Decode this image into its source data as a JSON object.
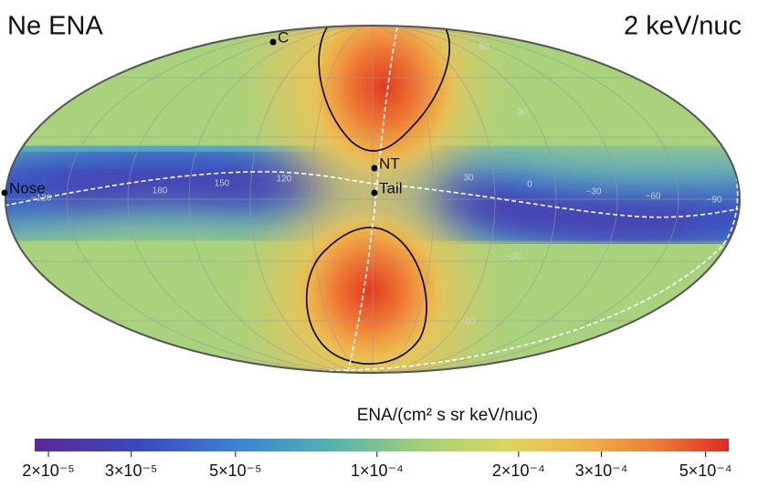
{
  "chart_data": {
    "type": "skymap",
    "title": "Ne ENA",
    "subtitle": "2 keV/nuc",
    "colorbar_label": "ENA/(cm² s sr keV/nuc)",
    "log_scale": true,
    "clim": [
      1.87e-05,
      0.00056
    ],
    "cticks": [
      {
        "value": 2e-05,
        "label": "2×10⁻⁵"
      },
      {
        "value": 3e-05,
        "label": "3×10⁻⁵"
      },
      {
        "value": 5e-05,
        "label": "5×10⁻⁵"
      },
      {
        "value": 0.0001,
        "label": "1×10⁻⁴"
      },
      {
        "value": 0.0002,
        "label": "2×10⁻⁴"
      },
      {
        "value": 0.0003,
        "label": "3×10⁻⁴"
      },
      {
        "value": 0.0005,
        "label": "5×10⁻⁴"
      }
    ],
    "points": [
      "Nose",
      "C",
      "NT",
      "Tail"
    ],
    "grid_labels": [
      "−120",
      "180",
      "150",
      "120",
      "30",
      "0",
      "−30",
      "−60",
      "−90",
      "30",
      "−30",
      "60",
      "−60"
    ]
  }
}
